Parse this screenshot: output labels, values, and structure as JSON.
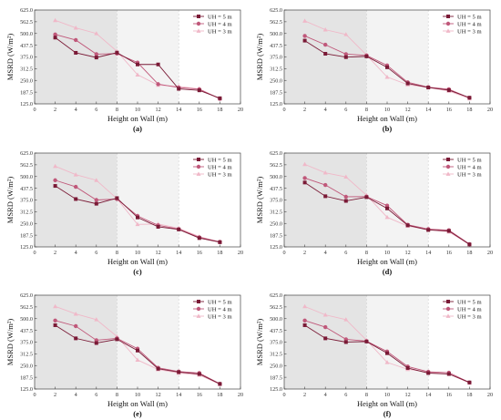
{
  "colors": {
    "uh5": "#7a1a36",
    "uh4": "#c0587a",
    "uh3": "#f0b8c8",
    "shade_dark": "#e4e4e4",
    "shade_light": "#f3f3f3"
  },
  "chart_data": [
    {
      "type": "line",
      "panel_label": "(a)",
      "xlabel": "Height on Wall (m)",
      "ylabel": "MSRD (W/m²)",
      "xlim": [
        0,
        20
      ],
      "ylim": [
        125,
        625
      ],
      "xticks": [
        "0",
        "2",
        "4",
        "6",
        "8",
        "10",
        "12",
        "14",
        "16",
        "18",
        "20"
      ],
      "yticks": [
        "125.0",
        "187.5",
        "250.0",
        "312.5",
        "375.0",
        "437.5",
        "500.0",
        "562.5",
        "625.0"
      ],
      "x": [
        2,
        4,
        6,
        8,
        10,
        12,
        14,
        16,
        18
      ],
      "series": [
        {
          "name": "UH = 5 m",
          "values": [
            478,
            397,
            372,
            398,
            335,
            335,
            205,
            197,
            155
          ]
        },
        {
          "name": "UH = 4 m",
          "values": [
            495,
            465,
            390,
            393,
            345,
            230,
            212,
            203,
            152
          ]
        },
        {
          "name": "UH = 3 m",
          "values": [
            570,
            530,
            500,
            405,
            280,
            225,
            218,
            205,
            152
          ]
        }
      ],
      "legend": "top-right",
      "grid": false
    },
    {
      "type": "line",
      "panel_label": "(b)",
      "xlabel": "Height on Wall (m)",
      "ylabel": "MSRD (W/m²)",
      "xlim": [
        0,
        20
      ],
      "ylim": [
        125,
        625
      ],
      "xticks": [
        "0",
        "2",
        "4",
        "6",
        "8",
        "10",
        "12",
        "14",
        "16",
        "18",
        "20"
      ],
      "yticks": [
        "125.0",
        "187.5",
        "250.0",
        "312.5",
        "375.0",
        "437.5",
        "500.0",
        "562.5",
        "625.0"
      ],
      "x": [
        2,
        4,
        6,
        8,
        10,
        12,
        14,
        16,
        18
      ],
      "series": [
        {
          "name": "UH = 5 m",
          "values": [
            462,
            392,
            374,
            378,
            320,
            234,
            212,
            198,
            158
          ]
        },
        {
          "name": "UH = 4 m",
          "values": [
            487,
            440,
            390,
            383,
            330,
            240,
            214,
            203,
            157
          ]
        },
        {
          "name": "UH = 3 m",
          "values": [
            567,
            520,
            495,
            385,
            268,
            227,
            212,
            193,
            153
          ]
        }
      ],
      "legend": "top-right",
      "grid": false
    },
    {
      "type": "line",
      "panel_label": "(c)",
      "xlabel": "Height on Wall (m)",
      "ylabel": "MSRD (W/m²)",
      "xlim": [
        0,
        20
      ],
      "ylim": [
        125,
        625
      ],
      "xticks": [
        "0",
        "2",
        "4",
        "6",
        "8",
        "10",
        "12",
        "14",
        "16",
        "18",
        "20"
      ],
      "yticks": [
        "125.0",
        "187.5",
        "250.0",
        "312.5",
        "375.0",
        "437.5",
        "500.0",
        "562.5",
        "625.0"
      ],
      "x": [
        2,
        4,
        6,
        8,
        10,
        12,
        14,
        16,
        18
      ],
      "series": [
        {
          "name": "UH = 5 m",
          "values": [
            450,
            380,
            355,
            385,
            282,
            232,
            218,
            172,
            150
          ]
        },
        {
          "name": "UH = 4 m",
          "values": [
            480,
            445,
            375,
            380,
            290,
            240,
            220,
            176,
            152
          ]
        },
        {
          "name": "UH = 3 m",
          "values": [
            555,
            510,
            480,
            382,
            245,
            247,
            224,
            180,
            150
          ]
        }
      ],
      "legend": "top-right",
      "grid": false
    },
    {
      "type": "line",
      "panel_label": "(d)",
      "xlabel": "Height on Wall (m)",
      "ylabel": "MSRD (W/m²)",
      "xlim": [
        0,
        20
      ],
      "ylim": [
        125,
        625
      ],
      "xticks": [
        "0",
        "2",
        "4",
        "6",
        "8",
        "10",
        "12",
        "14",
        "16",
        "18",
        "20"
      ],
      "yticks": [
        "125.0",
        "187.5",
        "250.0",
        "312.5",
        "375.0",
        "437.5",
        "500.0",
        "562.5",
        "625.0"
      ],
      "x": [
        2,
        4,
        6,
        8,
        10,
        12,
        14,
        16,
        18
      ],
      "series": [
        {
          "name": "UH = 5 m",
          "values": [
            468,
            395,
            370,
            390,
            330,
            240,
            215,
            210,
            138
          ]
        },
        {
          "name": "UH = 4 m",
          "values": [
            492,
            455,
            392,
            393,
            345,
            243,
            220,
            214,
            140
          ]
        },
        {
          "name": "UH = 3 m",
          "values": [
            565,
            520,
            498,
            400,
            283,
            236,
            217,
            205,
            138
          ]
        }
      ],
      "legend": "top-right",
      "grid": false
    },
    {
      "type": "line",
      "panel_label": "(e)",
      "xlabel": "Height on Wall (m)",
      "ylabel": "MSRD (W/m²)",
      "xlim": [
        0,
        20
      ],
      "ylim": [
        125,
        625
      ],
      "xticks": [
        "0",
        "2",
        "4",
        "6",
        "8",
        "10",
        "12",
        "14",
        "16",
        "18",
        "20"
      ],
      "yticks": [
        "125.0",
        "187.5",
        "250.0",
        "312.5",
        "375.0",
        "437.5",
        "500.0",
        "562.5",
        "625.0"
      ],
      "x": [
        2,
        4,
        6,
        8,
        10,
        12,
        14,
        16,
        18
      ],
      "series": [
        {
          "name": "UH = 5 m",
          "values": [
            465,
            395,
            370,
            390,
            330,
            233,
            215,
            205,
            152
          ]
        },
        {
          "name": "UH = 4 m",
          "values": [
            490,
            460,
            385,
            395,
            340,
            238,
            218,
            210,
            153
          ]
        },
        {
          "name": "UH = 3 m",
          "values": [
            565,
            525,
            495,
            405,
            280,
            229,
            210,
            200,
            150
          ]
        }
      ],
      "legend": "top-right",
      "grid": false
    },
    {
      "type": "line",
      "panel_label": "(f)",
      "xlabel": "Height on Wall (m)",
      "ylabel": "MSRD (W/m²)",
      "xlim": [
        0,
        20
      ],
      "ylim": [
        125,
        625
      ],
      "xticks": [
        "0",
        "2",
        "4",
        "6",
        "8",
        "10",
        "12",
        "14",
        "16",
        "18",
        "20"
      ],
      "yticks": [
        "125.0",
        "187.5",
        "250.0",
        "312.5",
        "375.0",
        "437.5",
        "500.0",
        "562.5",
        "625.0"
      ],
      "x": [
        2,
        4,
        6,
        8,
        10,
        12,
        14,
        16,
        18
      ],
      "series": [
        {
          "name": "UH = 5 m",
          "values": [
            465,
            395,
            375,
            378,
            316,
            237,
            210,
            205,
            160
          ]
        },
        {
          "name": "UH = 4 m",
          "values": [
            490,
            455,
            390,
            380,
            325,
            245,
            217,
            212,
            160
          ]
        },
        {
          "name": "UH = 3 m",
          "values": [
            565,
            520,
            495,
            385,
            267,
            230,
            215,
            205,
            157
          ]
        }
      ],
      "legend": "top-right",
      "grid": false
    }
  ]
}
